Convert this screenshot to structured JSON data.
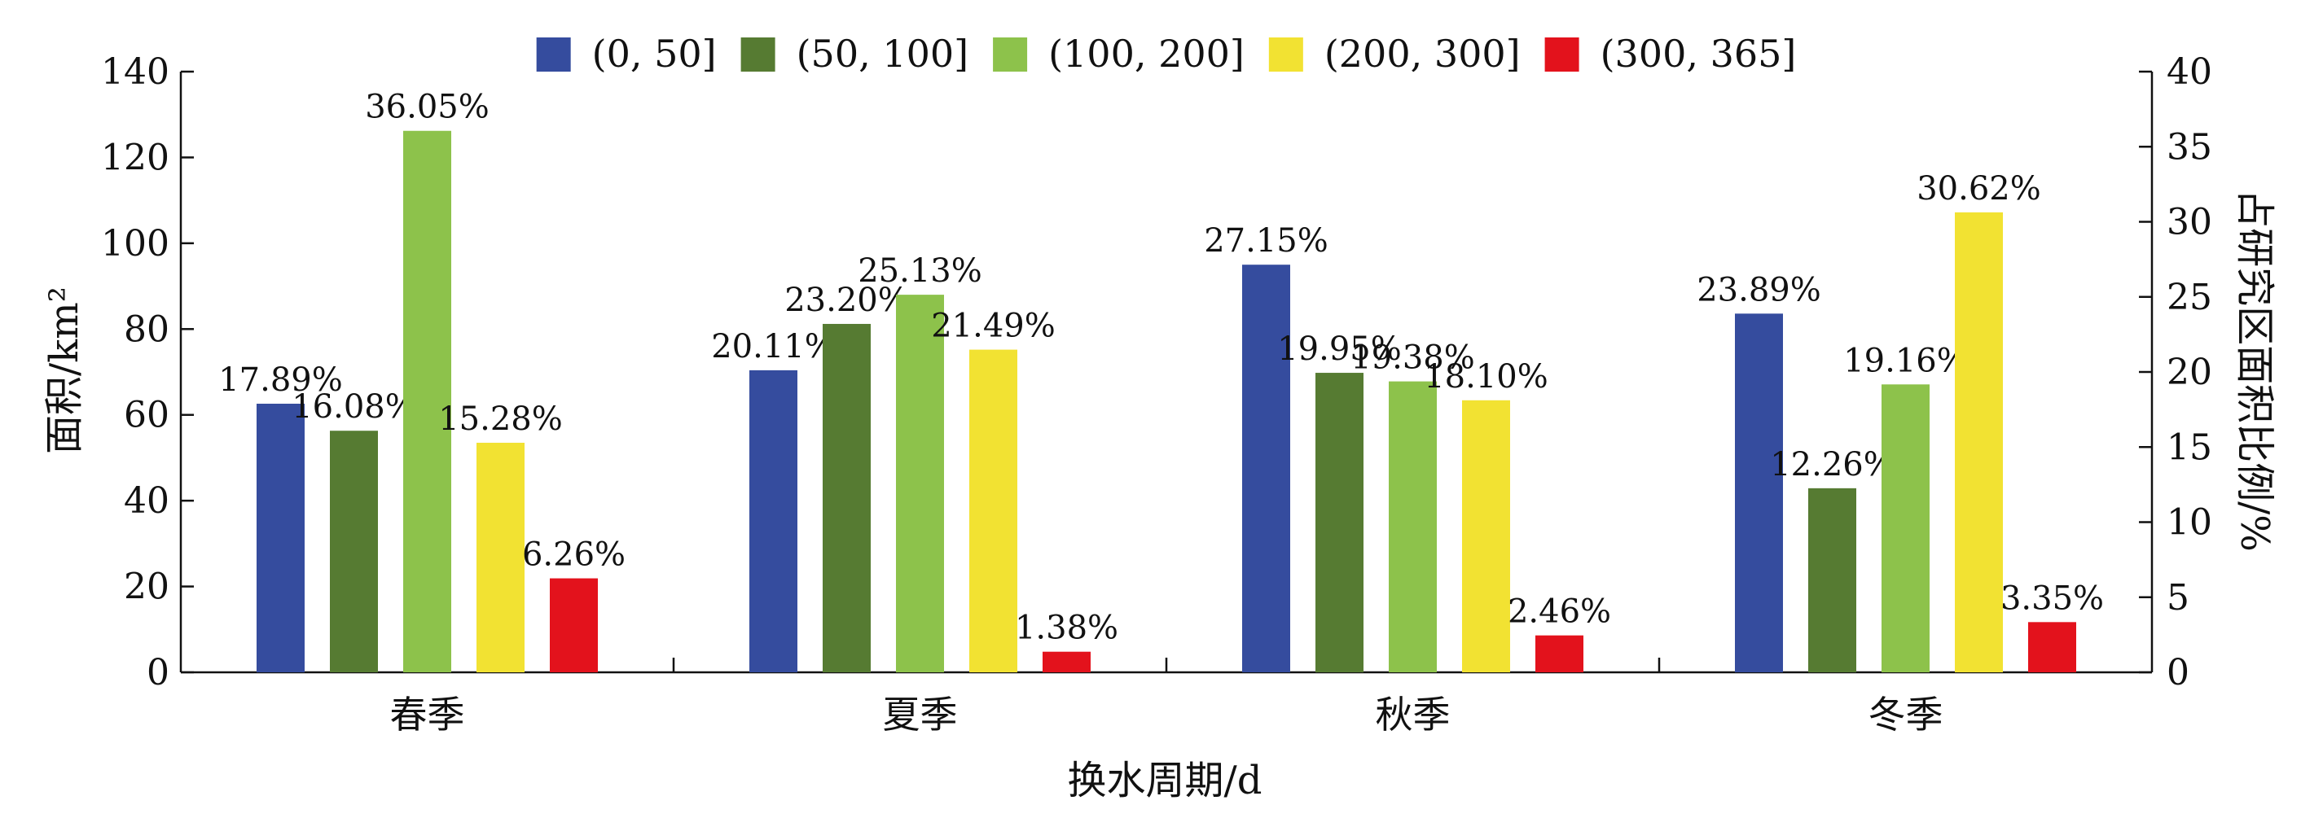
{
  "chart_data": {
    "type": "bar",
    "title": "",
    "xlabel": "换水周期/d",
    "ylabel_left": "面积/km²",
    "ylabel_right": "占研究区面积比例/%",
    "ylim_left": [
      0,
      140
    ],
    "ylim_right": [
      0,
      40
    ],
    "yticks_left": [
      0,
      20,
      40,
      60,
      80,
      100,
      120,
      140
    ],
    "yticks_right": [
      0,
      5,
      10,
      15,
      20,
      25,
      30,
      35,
      40
    ],
    "categories": [
      "春季",
      "夏季",
      "秋季",
      "冬季"
    ],
    "legend_position": "top",
    "grid": false,
    "series": [
      {
        "name": "(0, 50]",
        "color": "#354c9e",
        "values": [
          62.6,
          70.4,
          95.0,
          83.6
        ],
        "labels": [
          "17.89%",
          "20.11%",
          "27.15%",
          "23.89%"
        ]
      },
      {
        "name": "(50, 100]",
        "color": "#567b32",
        "values": [
          56.3,
          81.2,
          69.8,
          42.9
        ],
        "labels": [
          "16.08%",
          "23.20%",
          "19.95%",
          "12.26%"
        ]
      },
      {
        "name": "(100, 200]",
        "color": "#8dc24b",
        "values": [
          126.2,
          88.0,
          67.8,
          67.1
        ],
        "labels": [
          "36.05%",
          "25.13%",
          "19.38%",
          "19.16%"
        ]
      },
      {
        "name": "(200, 300]",
        "color": "#f2e232",
        "values": [
          53.5,
          75.2,
          63.4,
          107.2
        ],
        "labels": [
          "15.28%",
          "21.49%",
          "18.10%",
          "30.62%"
        ]
      },
      {
        "name": "(300, 365]",
        "color": "#e3121c",
        "values": [
          21.9,
          4.8,
          8.6,
          11.7
        ],
        "labels": [
          "6.26%",
          "1.38%",
          "2.46%",
          "3.35%"
        ]
      }
    ]
  }
}
